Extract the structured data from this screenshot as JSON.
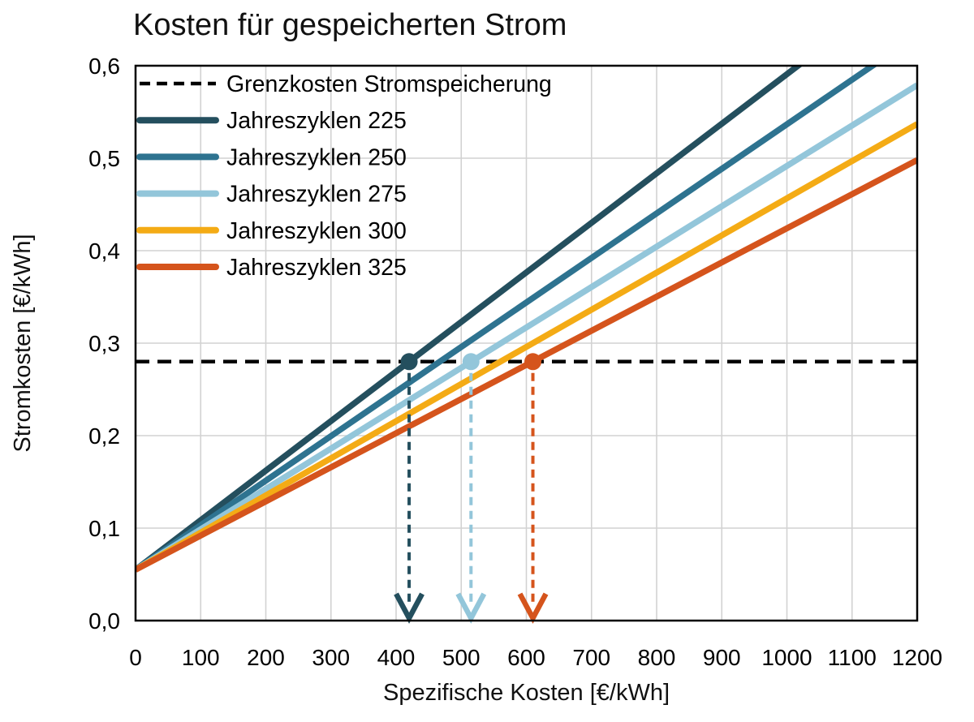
{
  "chart_data": {
    "type": "line",
    "title": "Kosten für gespeicherten Strom",
    "xlabel": "Spezifische Kosten [€/kWh]",
    "ylabel": "Stromkosten [€/kWh]",
    "xlim": [
      0,
      1200
    ],
    "ylim": [
      0,
      0.6
    ],
    "x_ticks": [
      0,
      100,
      200,
      300,
      400,
      500,
      600,
      700,
      800,
      900,
      1000,
      1100,
      1200
    ],
    "y_ticks": [
      0,
      0.1,
      0.2,
      0.3,
      0.4,
      0.5,
      0.6
    ],
    "y_tick_labels": [
      "0,0",
      "0,1",
      "0,2",
      "0,3",
      "0,4",
      "0,5",
      "0,6"
    ],
    "grid": true,
    "legend_position": "top-left-inside",
    "threshold": {
      "label": "Grenzkosten Stromspeicherung",
      "value": 0.28,
      "color": "#000000",
      "style": "dashed"
    },
    "series": [
      {
        "name": "Jahreszyklen 225",
        "color": "#244F5E",
        "points": [
          [
            0,
            0.055
          ],
          [
            1200,
            0.698
          ]
        ],
        "crosses_threshold_at_x": 420
      },
      {
        "name": "Jahreszyklen 250",
        "color": "#2E7390",
        "points": [
          [
            0,
            0.055
          ],
          [
            1200,
            0.633
          ]
        ],
        "crosses_threshold_at_x": 467
      },
      {
        "name": "Jahreszyklen 275",
        "color": "#93C6DA",
        "points": [
          [
            0,
            0.055
          ],
          [
            1200,
            0.579
          ]
        ],
        "crosses_threshold_at_x": 515
      },
      {
        "name": "Jahreszyklen 300",
        "color": "#F4AB15",
        "points": [
          [
            0,
            0.055
          ],
          [
            1200,
            0.537
          ]
        ],
        "crosses_threshold_at_x": 560
      },
      {
        "name": "Jahreszyklen 325",
        "color": "#D5541C",
        "points": [
          [
            0,
            0.055
          ],
          [
            1200,
            0.498
          ]
        ],
        "crosses_threshold_at_x": 610
      }
    ],
    "threshold_markers": [
      {
        "series": "Jahreszyklen 225",
        "x": 420,
        "y": 0.28,
        "color": "#244F5E"
      },
      {
        "series": "Jahreszyklen 275",
        "x": 515,
        "y": 0.28,
        "color": "#93C6DA"
      },
      {
        "series": "Jahreszyklen 325",
        "x": 610,
        "y": 0.28,
        "color": "#D5541C"
      }
    ],
    "colors": {
      "grid": "#D2D2D2",
      "axis": "#000000",
      "background": "#FFFFFF"
    }
  }
}
